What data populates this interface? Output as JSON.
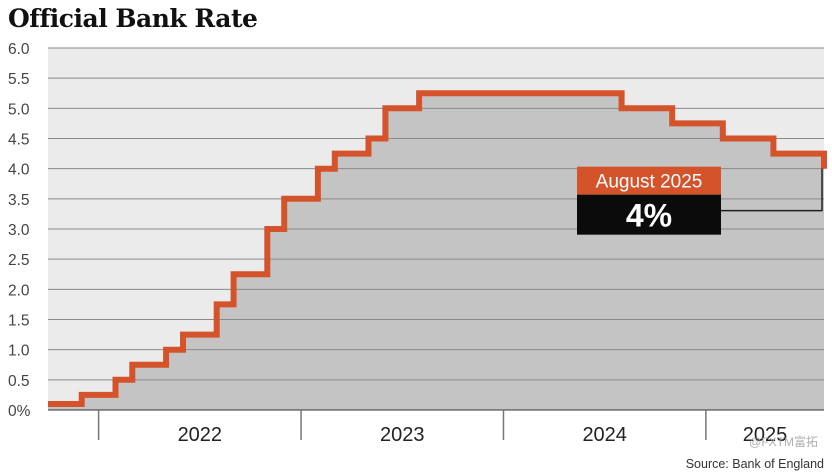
{
  "chart_data": {
    "type": "area",
    "title": "Official Bank Rate",
    "xlabel": "",
    "ylabel": "",
    "ylim": [
      0,
      6
    ],
    "y_ticks": [
      "0%",
      "0.5",
      "1.0",
      "1.5",
      "2.0",
      "2.5",
      "3.0",
      "3.5",
      "4.0",
      "4.5",
      "5.0",
      "5.5",
      "6.0"
    ],
    "x_labels": [
      "2022",
      "2023",
      "2024",
      "2025"
    ],
    "x_range": [
      "2021-10",
      "2025-08"
    ],
    "grid": true,
    "step": true,
    "series": [
      {
        "values": [
          {
            "x": "2021-10",
            "y": 0.1
          },
          {
            "x": "2021-12",
            "y": 0.25
          },
          {
            "x": "2022-02",
            "y": 0.5
          },
          {
            "x": "2022-03",
            "y": 0.75
          },
          {
            "x": "2022-05",
            "y": 1.0
          },
          {
            "x": "2022-06",
            "y": 1.25
          },
          {
            "x": "2022-08",
            "y": 1.75
          },
          {
            "x": "2022-09",
            "y": 2.25
          },
          {
            "x": "2022-11",
            "y": 3.0
          },
          {
            "x": "2022-12",
            "y": 3.5
          },
          {
            "x": "2023-02",
            "y": 4.0
          },
          {
            "x": "2023-03",
            "y": 4.25
          },
          {
            "x": "2023-05",
            "y": 4.5
          },
          {
            "x": "2023-06",
            "y": 5.0
          },
          {
            "x": "2023-08",
            "y": 5.25
          },
          {
            "x": "2024-08",
            "y": 5.0
          },
          {
            "x": "2024-11",
            "y": 4.75
          },
          {
            "x": "2025-02",
            "y": 4.5
          },
          {
            "x": "2025-05",
            "y": 4.25
          },
          {
            "x": "2025-08",
            "y": 4.0
          }
        ]
      }
    ],
    "annotation": {
      "date_label": "August 2025",
      "value_label": "4%"
    }
  },
  "source": "Source: Bank of England",
  "watermark": "@FXTM富拓",
  "colors": {
    "line": "#d4532b",
    "fill": "#c4c4c4",
    "plot_bg": "#ebebeb",
    "grid": "#8a8a8a",
    "callout_top": "#d4532b",
    "callout_bottom": "#0b0b0b"
  }
}
